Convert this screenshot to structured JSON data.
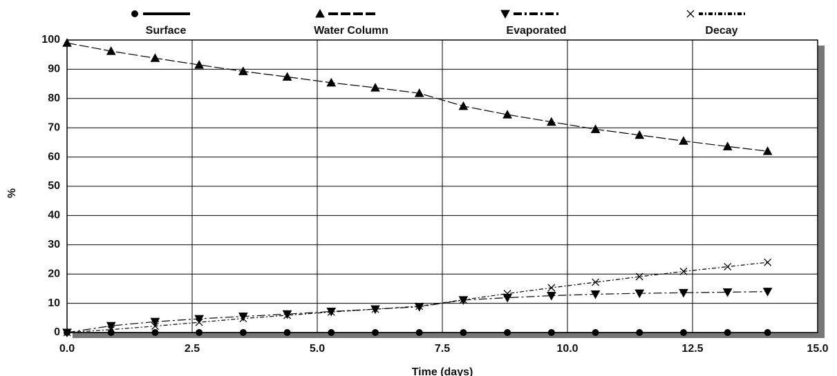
{
  "chart_data": {
    "type": "line",
    "x_label": "Time (days)",
    "y_label": "%",
    "x": [
      0.0,
      0.88,
      1.76,
      2.64,
      3.52,
      4.4,
      5.28,
      6.16,
      7.04,
      7.92,
      8.8,
      9.68,
      10.56,
      11.44,
      12.32,
      13.2,
      14.0
    ],
    "series": [
      {
        "name": "Surface",
        "color": "#000000",
        "marker": "circle",
        "dash": "none",
        "values": [
          0,
          0,
          0,
          0,
          0,
          0,
          0,
          0,
          0,
          0,
          0,
          0,
          0,
          0,
          0,
          0,
          0
        ]
      },
      {
        "name": "Water Column",
        "color": "#000000",
        "marker": "triangle",
        "dash": "14,4",
        "values": [
          99,
          96.2,
          93.8,
          91.5,
          89.3,
          87.4,
          85.4,
          83.7,
          81.8,
          77.4,
          74.5,
          72,
          69.5,
          67.5,
          65.5,
          63.6,
          62
        ]
      },
      {
        "name": "Evaporated",
        "color": "#000000",
        "marker": "triangle-down",
        "dash": "12,4,3,4",
        "values": [
          0,
          2.3,
          3.7,
          4.7,
          5.5,
          6.3,
          7.2,
          8,
          8.8,
          11.1,
          11.9,
          12.6,
          13.1,
          13.4,
          13.6,
          13.8,
          14
        ]
      },
      {
        "name": "Decay",
        "color": "#000000",
        "marker": "x",
        "dash": "6,3,2,3",
        "values": [
          0,
          1.0,
          2.2,
          3.5,
          4.8,
          5.9,
          7.0,
          8.0,
          9.0,
          11.2,
          13.3,
          15.3,
          17.2,
          19.1,
          20.9,
          22.5,
          24
        ]
      }
    ],
    "xlim": [
      0,
      15
    ],
    "xticks": [
      {
        "value": 0,
        "label": "0.0"
      },
      {
        "value": 2.5,
        "label": "2.5"
      },
      {
        "value": 5,
        "label": "5.0"
      },
      {
        "value": 7.5,
        "label": "7.5"
      },
      {
        "value": 10,
        "label": "10.0"
      },
      {
        "value": 12.5,
        "label": "12.5"
      },
      {
        "value": 15,
        "label": "15.0"
      }
    ],
    "ylim": [
      0,
      100
    ],
    "yticks": [
      0,
      10,
      20,
      30,
      40,
      50,
      60,
      70,
      80,
      90,
      100
    ],
    "grid": true
  }
}
